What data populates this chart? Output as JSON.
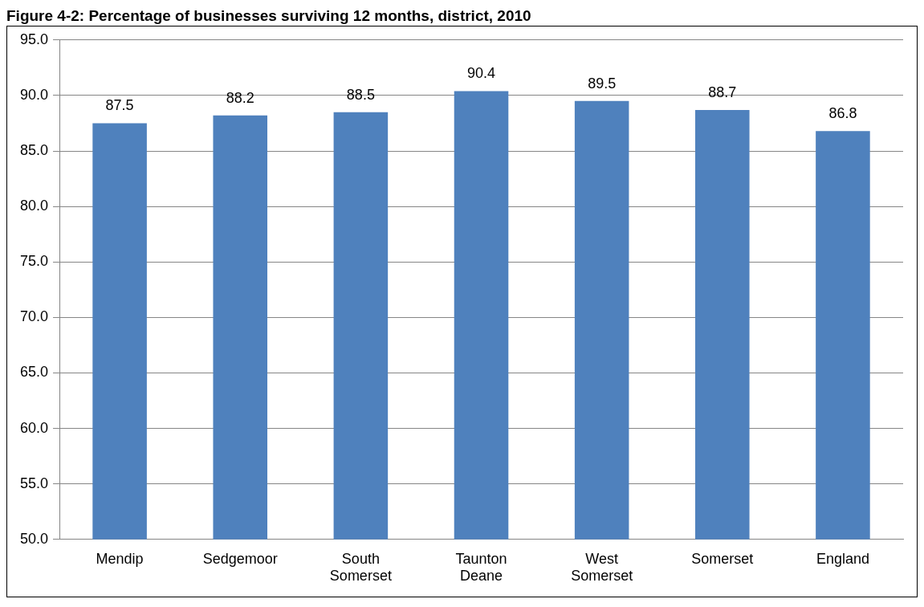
{
  "chart_data": {
    "type": "bar",
    "title": "Figure 4-2: Percentage of businesses surviving 12 months, district, 2010",
    "categories": [
      "Mendip",
      "Sedgemoor",
      "South Somerset",
      "Taunton Deane",
      "West Somerset",
      "Somerset",
      "England"
    ],
    "values": [
      87.5,
      88.2,
      88.5,
      90.4,
      89.5,
      88.7,
      86.8
    ],
    "color": "#4f81bd",
    "ylim": [
      50,
      95
    ],
    "yticks": [
      {
        "value": 50,
        "label": "50.0"
      },
      {
        "value": 55,
        "label": "55.0"
      },
      {
        "value": 60,
        "label": "60.0"
      },
      {
        "value": 65,
        "label": "65.0"
      },
      {
        "value": 70,
        "label": "70.0"
      },
      {
        "value": 75,
        "label": "75.0"
      },
      {
        "value": 80,
        "label": "80.0"
      },
      {
        "value": 85,
        "label": "85.0"
      },
      {
        "value": 90,
        "label": "90.0"
      },
      {
        "value": 95,
        "label": "95.0"
      }
    ],
    "grid": "y",
    "data_labels": true,
    "legend": false
  }
}
